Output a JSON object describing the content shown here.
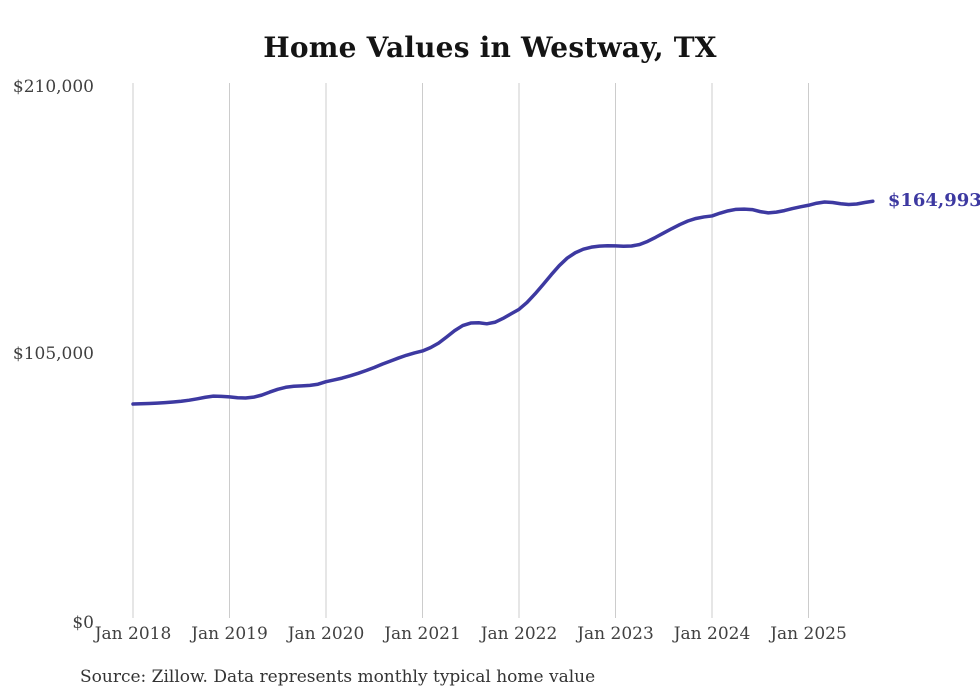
{
  "header": {
    "title": "Home Values in Westway, TX"
  },
  "annotation": {
    "end_value_label": "$164,993"
  },
  "footer": {
    "source_note": "Source: Zillow. Data represents monthly typical home value"
  },
  "colors": {
    "line": "#3d39a1",
    "annotation": "#3d39a1",
    "grid": "#cccccc",
    "tick_text": "#404040",
    "title_text": "#141414",
    "background": "#ffffff"
  },
  "chart_data": {
    "type": "line",
    "title": "Home Values in Westway, TX",
    "xlabel": "",
    "ylabel": "",
    "x_start_month": "Jan 2018",
    "x_end_month": "Sep 2025",
    "x_tick_labels": [
      "Jan 2018",
      "Jan 2019",
      "Jan 2020",
      "Jan 2021",
      "Jan 2022",
      "Jan 2023",
      "Jan 2024",
      "Jan 2025"
    ],
    "x_tick_month_indices": [
      0,
      12,
      24,
      36,
      48,
      60,
      72,
      84
    ],
    "y_ticks": [
      {
        "value": 0,
        "label": "$0"
      },
      {
        "value": 105000,
        "label": "$105,000"
      },
      {
        "value": 210000,
        "label": "$210,000"
      }
    ],
    "ylim": [
      0,
      210000
    ],
    "grid": "vertical-only",
    "legend": "none",
    "end_annotation": "$164,993",
    "series": [
      {
        "name": "Monthly typical home value",
        "values": [
          85100,
          85200,
          85300,
          85450,
          85650,
          85900,
          86200,
          86600,
          87150,
          87750,
          88200,
          88100,
          87900,
          87550,
          87450,
          87800,
          88600,
          89800,
          90900,
          91700,
          92100,
          92250,
          92450,
          92900,
          93900,
          94600,
          95300,
          96200,
          97200,
          98300,
          99500,
          100800,
          102000,
          103200,
          104300,
          105200,
          106000,
          107300,
          109100,
          111500,
          114000,
          116000,
          117000,
          117100,
          116700,
          117300,
          118800,
          120600,
          122400,
          125100,
          128500,
          132200,
          136000,
          139600,
          142600,
          144700,
          146100,
          146900,
          147300,
          147450,
          147400,
          147250,
          147350,
          147950,
          149200,
          150800,
          152500,
          154200,
          155800,
          157200,
          158200,
          158800,
          159200,
          160300,
          161200,
          161800,
          161900,
          161700,
          160900,
          160400,
          160700,
          161300,
          162100,
          162800,
          163400,
          164200,
          164700,
          164500,
          164000,
          163700,
          163900,
          164500,
          164993
        ]
      }
    ]
  }
}
